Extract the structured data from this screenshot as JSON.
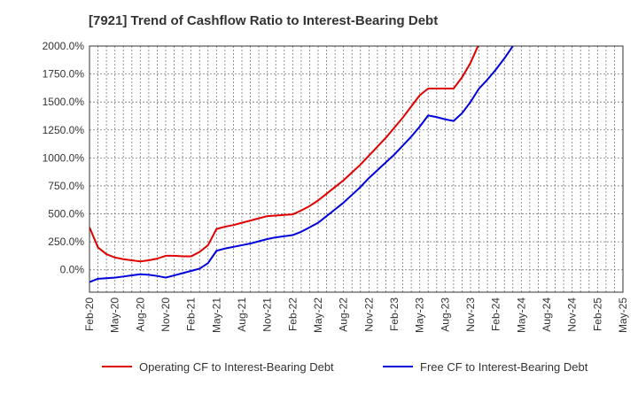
{
  "chart_data": {
    "type": "line",
    "title": "[7921]  Trend of Cashflow Ratio to Interest-Bearing Debt",
    "xlabel": "",
    "ylabel": "",
    "ylim": [
      -200,
      2000
    ],
    "yticks": [
      0,
      250,
      500,
      750,
      1000,
      1250,
      1500,
      1750,
      2000
    ],
    "ytick_labels": [
      "0.0%",
      "250.0%",
      "500.0%",
      "750.0%",
      "1000.0%",
      "1250.0%",
      "1500.0%",
      "1750.0%",
      "2000.0%"
    ],
    "x_categories": [
      "Feb-20",
      "Mar-20",
      "Apr-20",
      "May-20",
      "Jun-20",
      "Jul-20",
      "Aug-20",
      "Sep-20",
      "Oct-20",
      "Nov-20",
      "Dec-20",
      "Jan-21",
      "Feb-21",
      "Mar-21",
      "Apr-21",
      "May-21",
      "Jun-21",
      "Jul-21",
      "Aug-21",
      "Sep-21",
      "Oct-21",
      "Nov-21",
      "Dec-21",
      "Jan-22",
      "Feb-22",
      "Mar-22",
      "Apr-22",
      "May-22",
      "Jun-22",
      "Jul-22",
      "Aug-22",
      "Sep-22",
      "Oct-22",
      "Nov-22",
      "Dec-22",
      "Jan-23",
      "Feb-23",
      "Mar-23",
      "Apr-23",
      "May-23",
      "Jun-23",
      "Jul-23",
      "Aug-23",
      "Sep-23",
      "Oct-23",
      "Nov-23",
      "Dec-23",
      "Jan-24",
      "Feb-24",
      "Mar-24",
      "Apr-24",
      "May-24",
      "Jun-24",
      "Jul-24",
      "Aug-24",
      "Sep-24",
      "Oct-24",
      "Nov-24",
      "Dec-24",
      "Jan-25",
      "Feb-25",
      "Mar-25",
      "Apr-25",
      "May-25"
    ],
    "x_tick_labels": [
      "Feb-20",
      "May-20",
      "Aug-20",
      "Nov-20",
      "Feb-21",
      "May-21",
      "Aug-21",
      "Nov-21",
      "Feb-22",
      "May-22",
      "Aug-22",
      "Nov-22",
      "Feb-23",
      "May-23",
      "Aug-23",
      "Nov-23",
      "Feb-24",
      "May-24",
      "Aug-24",
      "Nov-24",
      "Feb-25",
      "May-25"
    ],
    "grid": true,
    "legend_position": "bottom",
    "series": [
      {
        "name": "Operating CF to Interest-Bearing Debt",
        "color": "#e00000",
        "values": [
          380,
          200,
          140,
          110,
          95,
          85,
          75,
          85,
          100,
          125,
          125,
          120,
          120,
          160,
          220,
          365,
          385,
          400,
          420,
          440,
          460,
          480,
          485,
          490,
          495,
          530,
          570,
          620,
          680,
          740,
          800,
          870,
          940,
          1020,
          1100,
          1180,
          1270,
          1360,
          1460,
          1560,
          1620,
          1620,
          1620,
          1620,
          1720,
          1850,
          2020,
          null,
          null,
          null,
          null,
          null,
          null,
          null,
          null,
          null,
          null,
          null,
          null,
          null,
          null,
          null,
          null,
          null
        ]
      },
      {
        "name": "Free CF to Interest-Bearing Debt",
        "color": "#0000dd",
        "values": [
          -110,
          -80,
          -75,
          -70,
          -60,
          -50,
          -40,
          -45,
          -55,
          -70,
          -50,
          -30,
          -10,
          10,
          60,
          170,
          190,
          205,
          220,
          235,
          255,
          275,
          290,
          300,
          310,
          340,
          380,
          420,
          480,
          540,
          600,
          670,
          740,
          820,
          890,
          960,
          1030,
          1110,
          1190,
          1280,
          1380,
          1365,
          1345,
          1330,
          1400,
          1500,
          1620,
          1700,
          1790,
          1890,
          2000,
          null,
          null,
          null,
          null,
          null,
          null,
          null,
          null,
          null,
          null,
          null,
          null,
          null
        ]
      }
    ]
  }
}
